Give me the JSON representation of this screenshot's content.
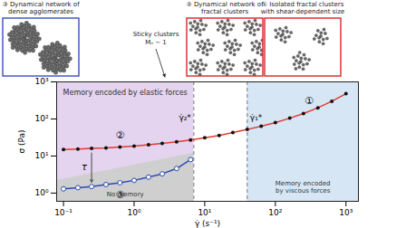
{
  "chart_data": {
    "type": "line",
    "log": true,
    "x_label": "γ̇ (s⁻¹)",
    "y_label": "σ (Pa)",
    "xlim": [
      0.08,
      1500
    ],
    "ylim": [
      0.6,
      1000
    ],
    "xticks": [
      {
        "value": 0.1,
        "label": "10⁻¹"
      },
      {
        "value": 1,
        "label": "10⁰"
      },
      {
        "value": 10,
        "label": "10¹"
      },
      {
        "value": 100,
        "label": "10²"
      },
      {
        "value": 1000,
        "label": "10³"
      }
    ],
    "yticks": [
      {
        "value": 1,
        "label": "10⁰"
      },
      {
        "value": 10,
        "label": "10¹"
      },
      {
        "value": 100,
        "label": "10²"
      },
      {
        "value": 1000,
        "label": "10³"
      }
    ],
    "series": [
      {
        "name": "②",
        "color": "#e03c31",
        "marker": "filled_circle",
        "x": [
          0.1,
          0.16,
          0.25,
          0.4,
          0.63,
          1,
          1.6,
          2.5,
          4,
          6.3,
          10,
          16,
          25,
          40,
          63,
          100,
          160,
          250,
          400,
          630,
          1000
        ],
        "values": [
          15,
          15.5,
          16,
          16.5,
          17.5,
          18.5,
          20,
          22,
          24,
          27,
          31,
          36,
          43,
          52,
          64,
          80,
          105,
          140,
          200,
          300,
          480
        ]
      },
      {
        "name": "③",
        "color": "#2b4bb3",
        "marker": "open_circle",
        "x": [
          0.1,
          0.16,
          0.25,
          0.4,
          0.63,
          1,
          1.6,
          2.5,
          4,
          6.3
        ],
        "values": [
          1.3,
          1.4,
          1.5,
          1.7,
          1.9,
          2.2,
          2.7,
          3.3,
          4.6,
          8
        ]
      }
    ],
    "regions": [
      {
        "label": "Memory encoded by elastic forces",
        "x": [
          0.08,
          7
        ],
        "color": "#e4d4ef"
      },
      {
        "label": "Memory encoded\nby viscous forces",
        "x": [
          40,
          1500
        ],
        "color": "#d6e6f5"
      },
      {
        "label": "No memory",
        "x": [
          0.08,
          7
        ],
        "y": [
          2.2,
          12
        ],
        "color": "#cfcfcf"
      }
    ],
    "vlines": [
      {
        "value": 7,
        "label": "γ̇₂*"
      },
      {
        "value": 40,
        "label": "γ̇₁*"
      }
    ],
    "annotations": {
      "regime_1": "①",
      "tau": "τ",
      "sticky": "Sticky clusters\nMₙ ~ 1"
    },
    "insets": [
      {
        "number": "③",
        "label": "Dynamical network of\ndense agglomerates",
        "color": "#3b4fc4"
      },
      {
        "number": "②",
        "label": "Dynamical network of\nfractal clusters",
        "color": "#d62728"
      },
      {
        "number": "①",
        "label": "Isolated fractal clusters\nwith shear-dependent size",
        "color": "#d62728"
      }
    ]
  }
}
